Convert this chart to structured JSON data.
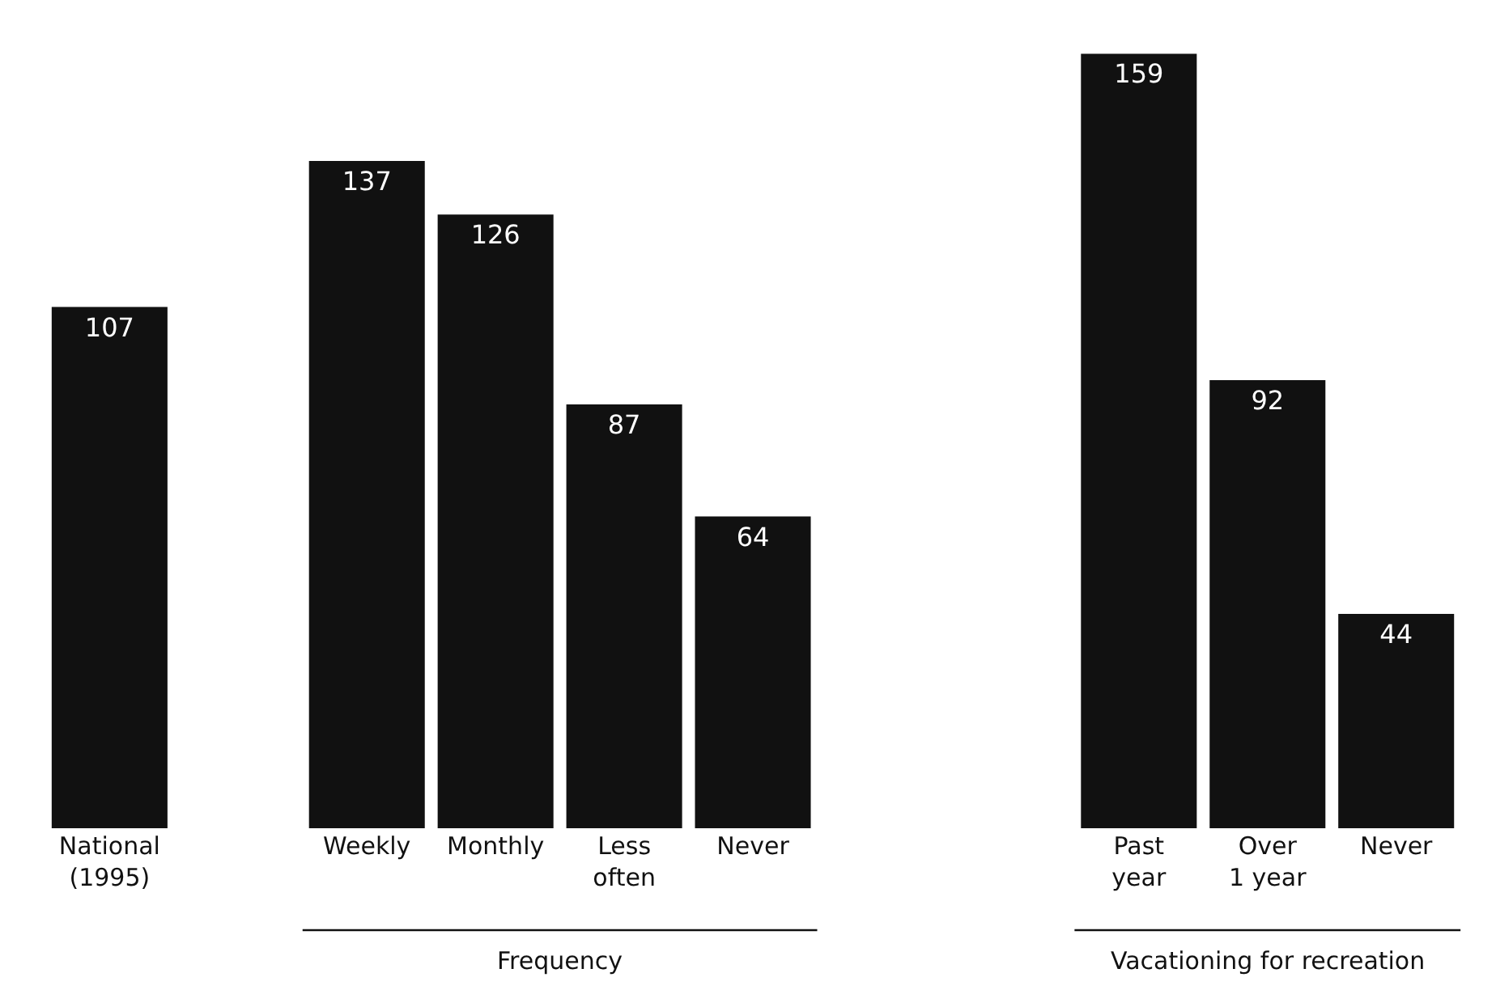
{
  "chart_data": {
    "type": "bar",
    "categories": [
      "National\n(1995)",
      null,
      "Weekly",
      "Monthly",
      "Less\noften",
      "Never",
      null,
      null,
      "Past\nyear",
      "Over\n1 year",
      "Never"
    ],
    "values": [
      107,
      null,
      137,
      126,
      87,
      64,
      null,
      null,
      159,
      92,
      44
    ],
    "color": "#111111",
    "data_labels": true,
    "tick_labels": "x",
    "annotations": [
      "Frequency",
      "Vacationing for recreation"
    ]
  }
}
